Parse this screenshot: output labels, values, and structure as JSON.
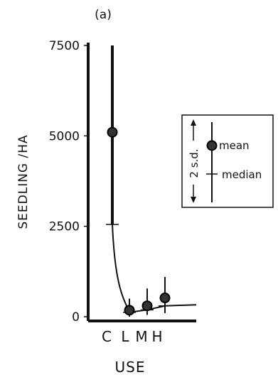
{
  "chart_data": {
    "type": "scatter",
    "panel_label": "(a)",
    "xlabel": "USE",
    "ylabel": "SEEDLING /HA",
    "categories": [
      "C",
      "L",
      "M",
      "H"
    ],
    "ylim": [
      0,
      7500
    ],
    "yticks": [
      0,
      2500,
      5000,
      7500
    ],
    "grid": false,
    "series": [
      {
        "name": "mean",
        "values": [
          5100,
          180,
          300,
          520
        ]
      },
      {
        "name": "median",
        "values": [
          2550,
          120,
          190,
          300
        ]
      }
    ],
    "error_bars": {
      "label": "2 s.d.",
      "values": [
        {
          "low": 2550,
          "high": 7500
        },
        {
          "low": 0,
          "high": 500
        },
        {
          "low": 50,
          "high": 780
        },
        {
          "low": 100,
          "high": 1100
        }
      ]
    },
    "legend": {
      "placement": "right",
      "range_label": "2 s.d.",
      "mean_label": "mean",
      "median_label": "median"
    }
  }
}
